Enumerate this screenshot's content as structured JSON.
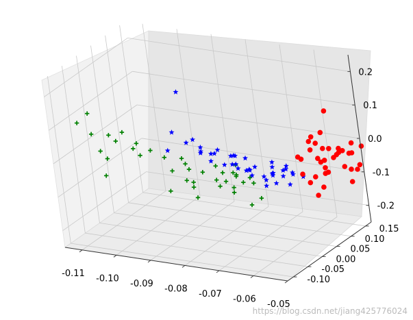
{
  "chart_data": {
    "type": "scatter",
    "projection": "3d",
    "grid": true,
    "axes": {
      "x": {
        "ticks": [
          "-0.11",
          "-0.10",
          "-0.09",
          "-0.08",
          "-0.07",
          "-0.06",
          "-0.05"
        ],
        "range": [
          -0.115,
          -0.05
        ]
      },
      "y": {
        "ticks": [
          "-0.10",
          "-0.05",
          "0.00",
          "0.05",
          "0.10",
          "0.15"
        ],
        "range": [
          -0.12,
          0.17
        ]
      },
      "z": {
        "ticks": [
          "-0.2",
          "-0.1",
          "0.0",
          "0.1",
          "0.2"
        ],
        "range": [
          -0.25,
          0.25
        ]
      }
    },
    "series": [
      {
        "marker": "plus",
        "color": "#008000",
        "points": [
          [
            -0.112,
            -0.06,
            0.09
          ],
          [
            -0.109,
            -0.055,
            0.12
          ],
          [
            -0.111,
            -0.03,
            0.04
          ],
          [
            -0.108,
            -0.04,
            0.0
          ],
          [
            -0.11,
            0.0,
            -0.05
          ],
          [
            -0.112,
            0.01,
            -0.11
          ],
          [
            -0.104,
            -0.05,
            0.06
          ],
          [
            -0.104,
            -0.03,
            0.03
          ],
          [
            -0.101,
            -0.01,
            0.0
          ],
          [
            -0.102,
            0.02,
            -0.04
          ],
          [
            -0.098,
            -0.07,
            0.09
          ],
          [
            -0.097,
            -0.04,
            0.04
          ],
          [
            -0.095,
            -0.02,
            0.01
          ],
          [
            -0.093,
            0.0,
            -0.02
          ],
          [
            -0.094,
            0.03,
            -0.08
          ],
          [
            -0.091,
            0.04,
            -0.11
          ],
          [
            -0.1,
            0.08,
            -0.18
          ],
          [
            -0.095,
            0.11,
            -0.21
          ],
          [
            -0.092,
            0.07,
            -0.15
          ],
          [
            -0.09,
            0.05,
            -0.12
          ],
          [
            -0.088,
            0.02,
            -0.06
          ],
          [
            -0.087,
            0.0,
            -0.03
          ],
          [
            -0.086,
            -0.02,
            0.0
          ],
          [
            -0.085,
            0.03,
            -0.07
          ],
          [
            -0.084,
            0.06,
            -0.11
          ],
          [
            -0.083,
            0.1,
            -0.17
          ],
          [
            -0.082,
            0.14,
            -0.23
          ],
          [
            -0.081,
            0.08,
            -0.14
          ],
          [
            -0.08,
            0.04,
            -0.07
          ],
          [
            -0.079,
            0.01,
            -0.03
          ],
          [
            -0.078,
            0.06,
            -0.09
          ],
          [
            -0.077,
            0.12,
            -0.19
          ],
          [
            -0.085,
            0.1,
            -0.14
          ],
          [
            -0.075,
            0.02,
            -0.05
          ],
          [
            -0.074,
            0.07,
            -0.11
          ],
          [
            -0.076,
            0.04,
            -0.07
          ],
          [
            -0.073,
            0.05,
            -0.08
          ],
          [
            -0.078,
            0.08,
            -0.12
          ],
          [
            -0.072,
            0.0,
            -0.01
          ],
          [
            -0.086,
            0.09,
            -0.15
          ]
        ]
      },
      {
        "marker": "star",
        "color": "#0000ff",
        "points": [
          [
            -0.085,
            -0.02,
            0.2
          ],
          [
            -0.086,
            -0.04,
            0.09
          ],
          [
            -0.087,
            -0.05,
            0.04
          ],
          [
            -0.084,
            -0.02,
            0.05
          ],
          [
            -0.081,
            -0.03,
            0.07
          ],
          [
            -0.08,
            -0.02,
            0.03
          ],
          [
            -0.082,
            0.0,
            0.01
          ],
          [
            -0.078,
            -0.01,
            0.02
          ],
          [
            -0.076,
            -0.02,
            0.03
          ],
          [
            -0.074,
            -0.03,
            0.05
          ],
          [
            -0.073,
            0.0,
            -0.01
          ],
          [
            -0.071,
            -0.01,
            0.0
          ],
          [
            -0.07,
            0.01,
            -0.03
          ],
          [
            -0.068,
            0.0,
            -0.02
          ],
          [
            -0.067,
            -0.02,
            0.03
          ],
          [
            -0.065,
            0.01,
            -0.04
          ],
          [
            -0.064,
            0.03,
            -0.04
          ],
          [
            -0.063,
            0.05,
            -0.06
          ],
          [
            -0.061,
            0.04,
            -0.03
          ],
          [
            -0.06,
            0.02,
            -0.02
          ],
          [
            -0.083,
            0.04,
            -0.04
          ],
          [
            -0.081,
            0.06,
            -0.06
          ],
          [
            -0.079,
            0.08,
            -0.08
          ],
          [
            -0.077,
            0.1,
            -0.11
          ],
          [
            -0.075,
            0.12,
            -0.15
          ],
          [
            -0.073,
            0.07,
            -0.06
          ],
          [
            -0.071,
            0.03,
            -0.04
          ],
          [
            -0.069,
            0.08,
            -0.08
          ],
          [
            -0.067,
            0.06,
            -0.07
          ],
          [
            -0.065,
            0.04,
            -0.03
          ],
          [
            -0.062,
            0.07,
            -0.06
          ],
          [
            -0.06,
            0.05,
            -0.05
          ],
          [
            -0.058,
            0.06,
            -0.06
          ],
          [
            -0.057,
            0.0,
            0.01
          ],
          [
            -0.072,
            0.09,
            -0.11
          ],
          [
            -0.066,
            0.1,
            -0.12
          ],
          [
            -0.079,
            -0.03,
            0.05
          ],
          [
            -0.069,
            -0.03,
            0.04
          ],
          [
            -0.075,
            0.02,
            0.0
          ],
          [
            -0.063,
            0.02,
            0.0
          ],
          [
            -0.077,
            0.05,
            -0.02
          ],
          [
            -0.071,
            0.11,
            -0.13
          ]
        ]
      },
      {
        "marker": "circle",
        "color": "#ff0000",
        "points": [
          [
            -0.053,
            0.1,
            0.12
          ],
          [
            -0.056,
            0.08,
            0.05
          ],
          [
            -0.055,
            0.06,
            0.05
          ],
          [
            -0.054,
            0.07,
            0.04
          ],
          [
            -0.053,
            0.04,
            0.04
          ],
          [
            -0.052,
            0.05,
            0.01
          ],
          [
            -0.053,
            0.08,
            0.02
          ],
          [
            -0.051,
            0.06,
            0.0
          ],
          [
            -0.052,
            0.07,
            -0.03
          ],
          [
            -0.051,
            0.09,
            -0.01
          ],
          [
            -0.05,
            0.09,
            0.0
          ],
          [
            -0.05,
            0.11,
            0.0
          ],
          [
            -0.05,
            0.13,
            -0.02
          ],
          [
            -0.049,
            0.1,
            -0.04
          ],
          [
            -0.049,
            0.12,
            -0.06
          ],
          [
            -0.05,
            0.15,
            -0.08
          ],
          [
            -0.051,
            0.17,
            -0.08
          ],
          [
            -0.052,
            0.16,
            -0.04
          ],
          [
            -0.053,
            0.13,
            -0.01
          ],
          [
            -0.054,
            0.11,
            0.0
          ],
          [
            -0.055,
            0.09,
            -0.03
          ],
          [
            -0.055,
            0.1,
            -0.07
          ],
          [
            -0.056,
            0.12,
            -0.08
          ],
          [
            -0.057,
            0.11,
            -0.12
          ],
          [
            -0.058,
            0.1,
            -0.14
          ],
          [
            -0.058,
            0.08,
            -0.09
          ],
          [
            -0.059,
            0.07,
            -0.06
          ],
          [
            -0.057,
            0.05,
            0.0
          ],
          [
            -0.056,
            0.03,
            0.02
          ],
          [
            -0.06,
            0.12,
            -0.1
          ],
          [
            -0.054,
            0.14,
            -0.03
          ],
          [
            -0.048,
            0.12,
            0.02
          ],
          [
            -0.047,
            0.14,
            0.0
          ],
          [
            -0.052,
            0.15,
            -0.12
          ],
          [
            -0.054,
            0.09,
            0.06
          ]
        ]
      }
    ]
  },
  "watermark": "https://blog.csdn.net/jiang425776024"
}
